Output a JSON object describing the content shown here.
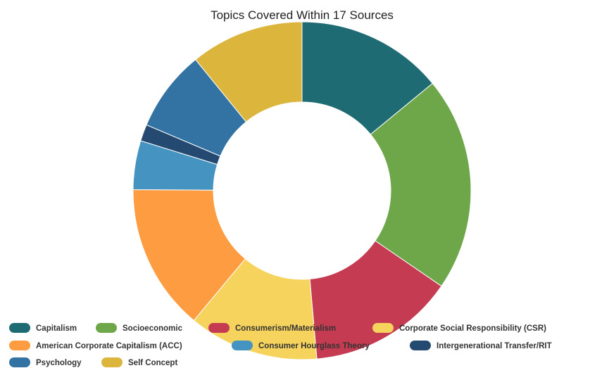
{
  "chart_data": {
    "type": "pie",
    "variant": "donut",
    "title": "Topics Covered Within 17 Sources",
    "legend_position": "bottom-left",
    "slices": [
      {
        "label": "Capitalism",
        "value": 14.1,
        "color": "#1e6b73"
      },
      {
        "label": "Socioeconomic",
        "value": 20.6,
        "color": "#6ea64a"
      },
      {
        "label": "Consumerism/Materialism",
        "value": 14.1,
        "color": "#c53c52"
      },
      {
        "label": "Corporate Social Responsibility (CSR)",
        "value": 12.5,
        "color": "#f5d35c"
      },
      {
        "label": "American Corporate Capitalism (ACC)",
        "value": 14.1,
        "color": "#fe9c41"
      },
      {
        "label": "Consumer Hourglass Theory",
        "value": 4.7,
        "color": "#4593c0"
      },
      {
        "label": "Intergenerational Transfer/RIT",
        "value": 1.6,
        "color": "#244a72"
      },
      {
        "label": "Psychology",
        "value": 7.8,
        "color": "#3273a4"
      },
      {
        "label": "Self Concept",
        "value": 10.9,
        "color": "#dcb63c"
      }
    ]
  }
}
